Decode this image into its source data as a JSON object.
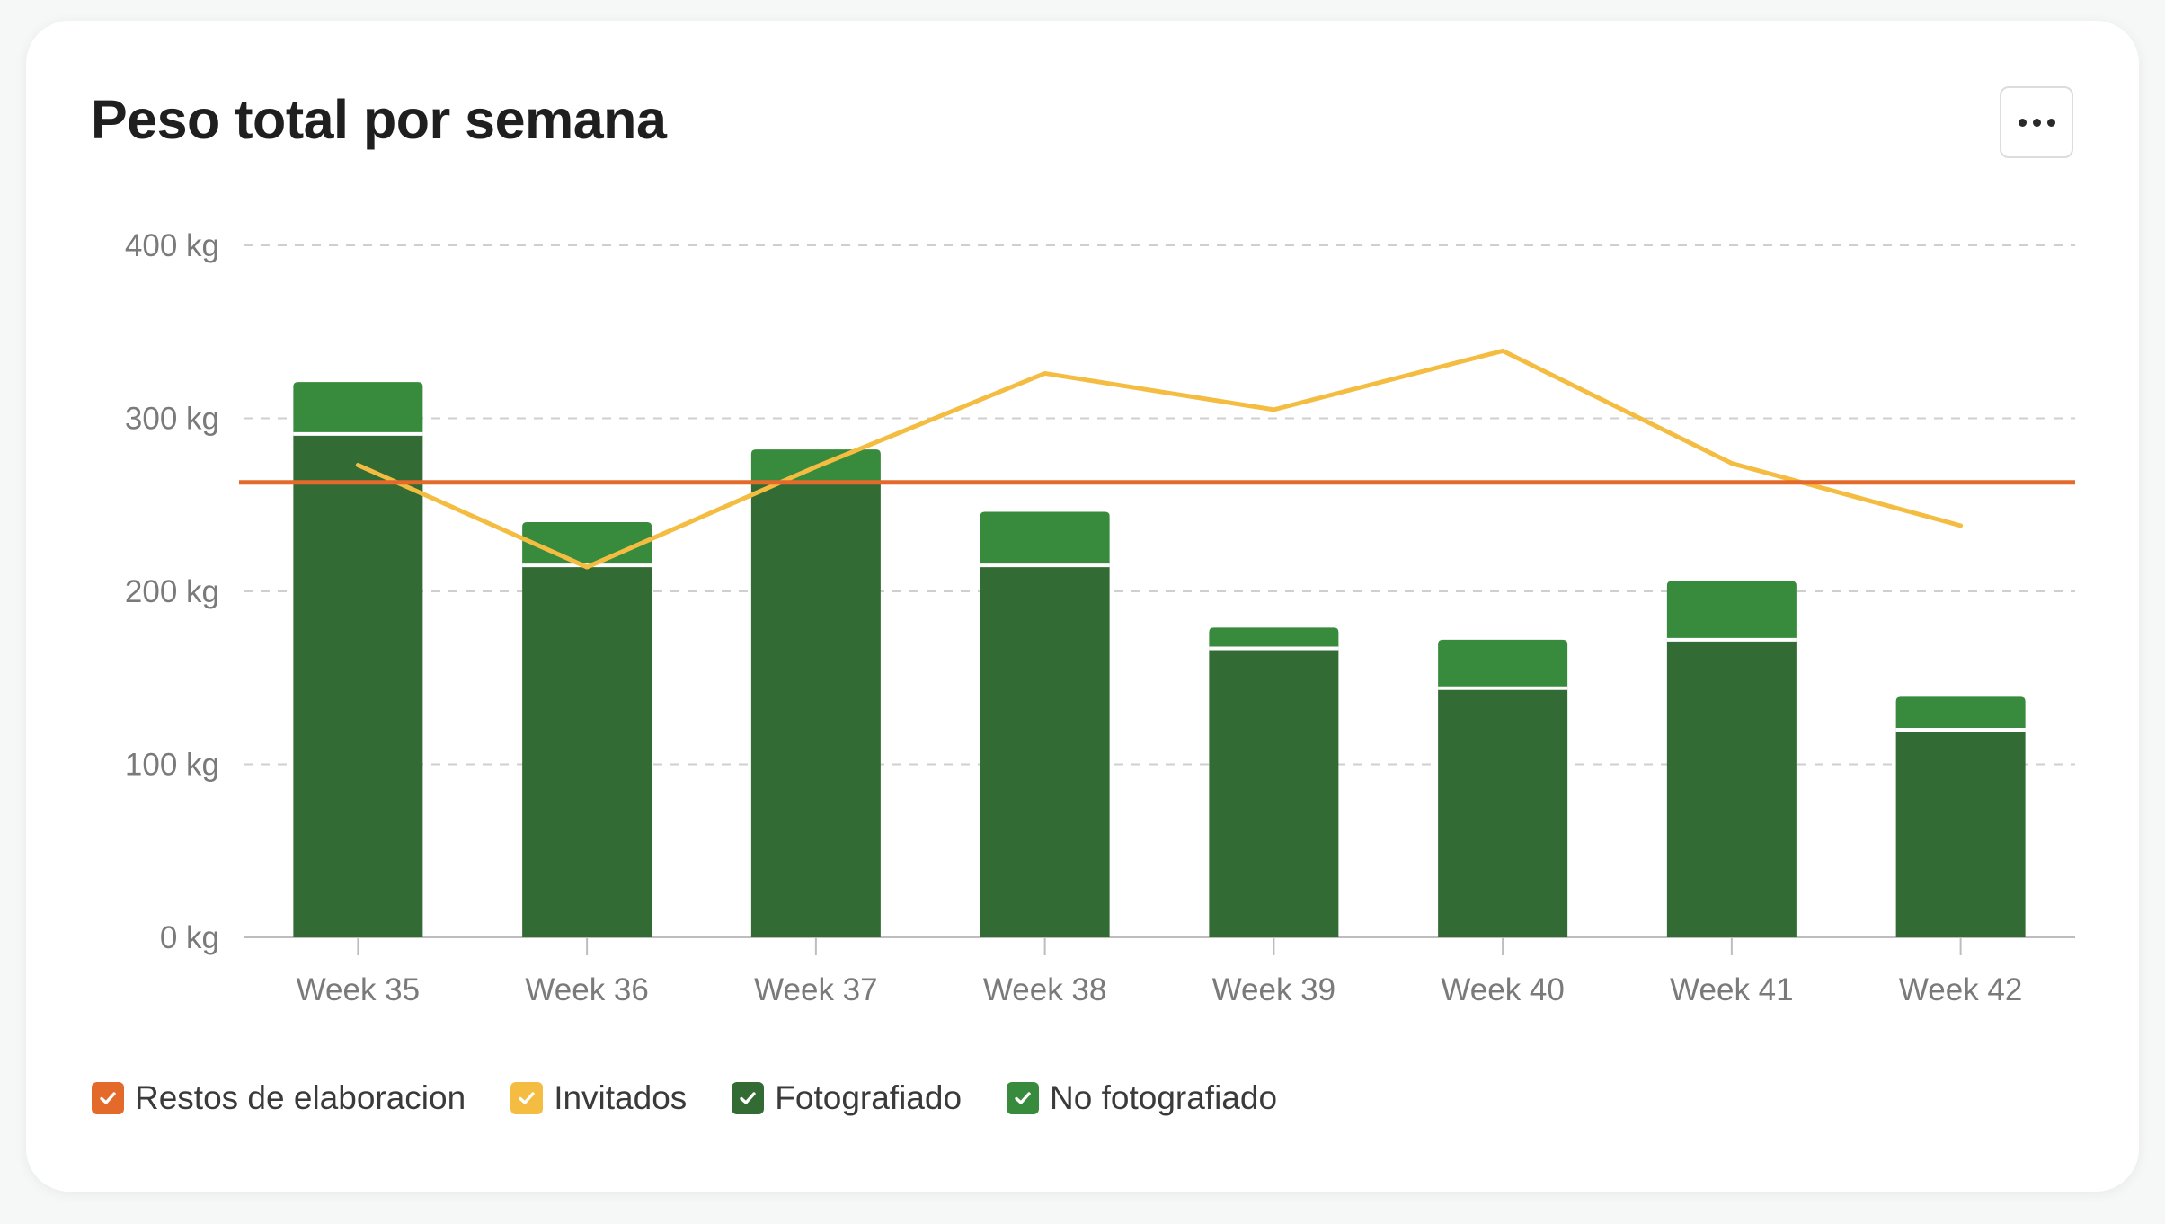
{
  "card": {
    "title": "Peso total por semana",
    "menu_icon": "more-horizontal-icon"
  },
  "chart_data": {
    "type": "bar",
    "stacked": true,
    "title": "Peso total por semana",
    "xlabel": "",
    "ylabel": "",
    "ylim": [
      0,
      400
    ],
    "yticks": [
      "0 kg",
      "100 kg",
      "200 kg",
      "300 kg",
      "400 kg"
    ],
    "ytick_values": [
      0,
      100,
      200,
      300,
      400
    ],
    "categories": [
      "Week 35",
      "Week 36",
      "Week 37",
      "Week 38",
      "Week 39",
      "Week 40",
      "Week 41",
      "Week 42"
    ],
    "grid": "horizontal-dashed",
    "legend_position": "bottom-left",
    "series": [
      {
        "name": "Fotografiado",
        "type": "bar",
        "color": "#336b34",
        "values": [
          291,
          215,
          263,
          215,
          167,
          144,
          172,
          120
        ]
      },
      {
        "name": "No fotografiado",
        "type": "bar",
        "color": "#388a3d",
        "values": [
          30,
          25,
          19,
          31,
          12,
          28,
          34,
          19
        ]
      },
      {
        "name": "Invitados",
        "type": "line",
        "color": "#f4bd41",
        "values": [
          273,
          214,
          272,
          326,
          305,
          339,
          274,
          238
        ]
      },
      {
        "name": "Restos de elaboracion",
        "type": "line",
        "color": "#e46a2c",
        "values": [
          263,
          263,
          263,
          263,
          263,
          263,
          263,
          263
        ]
      }
    ]
  },
  "legend": [
    {
      "label": "Restos de elaboracion",
      "color": "#e46a2c",
      "icon": "check-icon"
    },
    {
      "label": "Invitados",
      "color": "#f4bd41",
      "icon": "check-icon"
    },
    {
      "label": "Fotografiado",
      "color": "#336b34",
      "icon": "check-icon"
    },
    {
      "label": "No fotografiado",
      "color": "#388a3d",
      "icon": "check-icon"
    }
  ]
}
